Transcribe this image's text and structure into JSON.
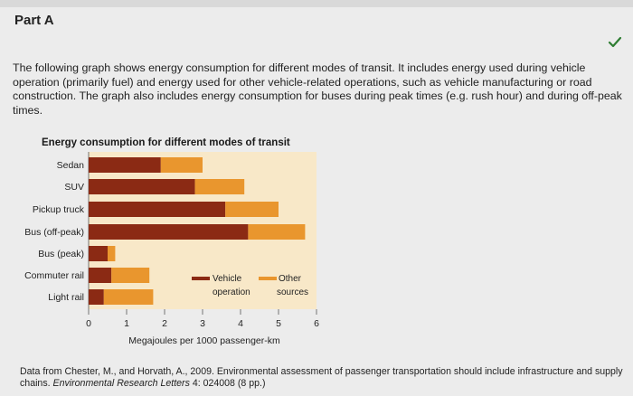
{
  "part_title": "Part A",
  "check_icon": "checkmark-icon",
  "intro_text": "The following graph shows energy consumption for different modes of transit. It includes energy used during vehicle operation (primarily fuel) and energy used for other vehicle-related operations, such as vehicle manufacturing or road construction. The graph also includes energy consumption for buses during peak times (e.g. rush hour) and during off-peak times.",
  "chart_data": {
    "type": "bar",
    "orientation": "horizontal",
    "stacked": true,
    "title": "Energy consumption for different modes of transit",
    "categories": [
      "Sedan",
      "SUV",
      "Pickup truck",
      "Bus (off-peak)",
      "Bus (peak)",
      "Commuter rail",
      "Light rail"
    ],
    "series": [
      {
        "name": "Vehicle operation",
        "values": [
          1.9,
          2.8,
          3.6,
          4.2,
          0.5,
          0.6,
          0.4
        ],
        "color": "#8b2a14"
      },
      {
        "name": "Other sources",
        "values": [
          1.1,
          1.3,
          1.4,
          1.5,
          0.2,
          1.0,
          1.3
        ],
        "color": "#e9962e"
      }
    ],
    "xlabel": "Megajoules per 1000 passenger-km",
    "xticks": [
      "0",
      "1",
      "2",
      "3",
      "4",
      "5",
      "6"
    ],
    "xlim": [
      0,
      6
    ],
    "legend": [
      "Vehicle operation",
      "Other sources"
    ],
    "legend_position": "lower-right",
    "plot_background": "#f8e8c8"
  },
  "citation": {
    "text": "Data from Chester, M., and Horvath, A., 2009. Environmental assessment of passenger transportation should include infrastructure and supply chains.",
    "journal": "Environmental Research Letters",
    "details": " 4: 024008 (8 pp.)"
  }
}
